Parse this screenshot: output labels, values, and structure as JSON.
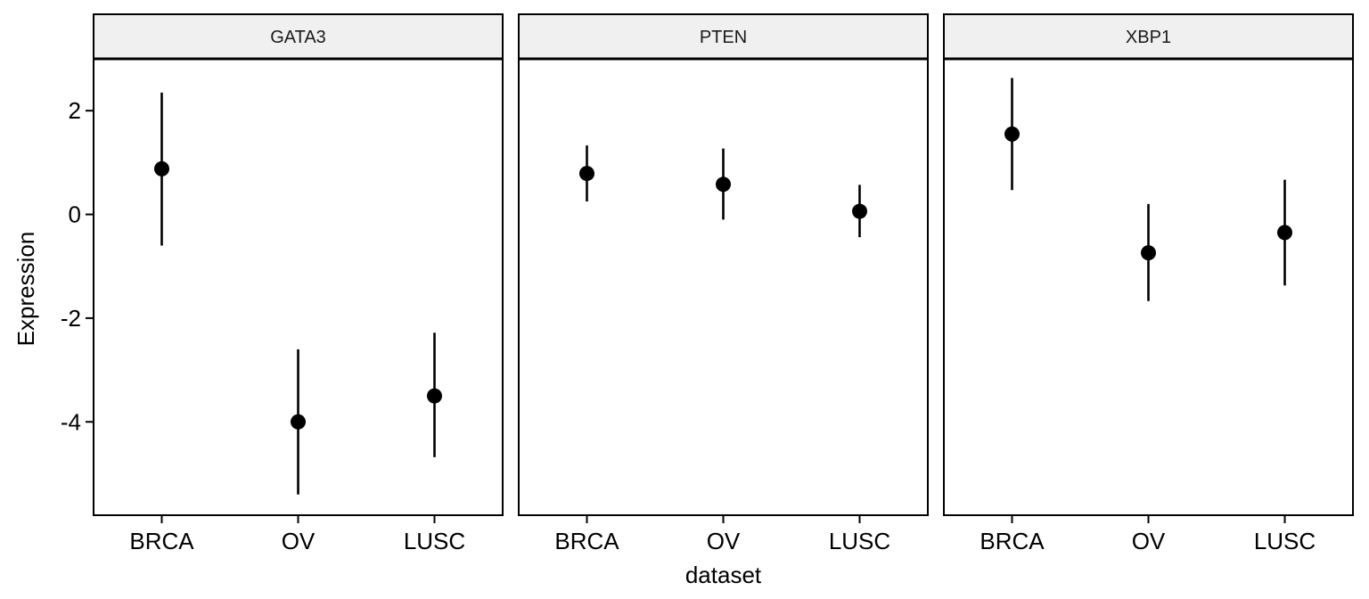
{
  "chart_data": {
    "type": "scatter",
    "subtype": "pointrange",
    "facet_by": "gene",
    "facets": [
      {
        "name": "GATA3",
        "categories": [
          "BRCA",
          "OV",
          "LUSC"
        ],
        "mean": [
          0.88,
          -4.0,
          -3.5
        ],
        "lower": [
          -0.6,
          -5.4,
          -4.68
        ],
        "upper": [
          2.35,
          -2.6,
          -2.28
        ]
      },
      {
        "name": "PTEN",
        "categories": [
          "BRCA",
          "OV",
          "LUSC"
        ],
        "mean": [
          0.79,
          0.58,
          0.06
        ],
        "lower": [
          0.25,
          -0.1,
          -0.44
        ],
        "upper": [
          1.33,
          1.27,
          0.57
        ]
      },
      {
        "name": "XBP1",
        "categories": [
          "BRCA",
          "OV",
          "LUSC"
        ],
        "mean": [
          1.55,
          -0.74,
          -0.35
        ],
        "lower": [
          0.47,
          -1.67,
          -1.37
        ],
        "upper": [
          2.63,
          0.2,
          0.67
        ]
      }
    ],
    "xlabel": "dataset",
    "ylabel": "Expression",
    "ylim": [
      -5.8,
      3.0
    ],
    "yticks": [
      2,
      0,
      -2,
      -4
    ],
    "ytick_labels": [
      "2",
      "0",
      "-2",
      "-4"
    ],
    "grid": false,
    "legend": "none"
  }
}
